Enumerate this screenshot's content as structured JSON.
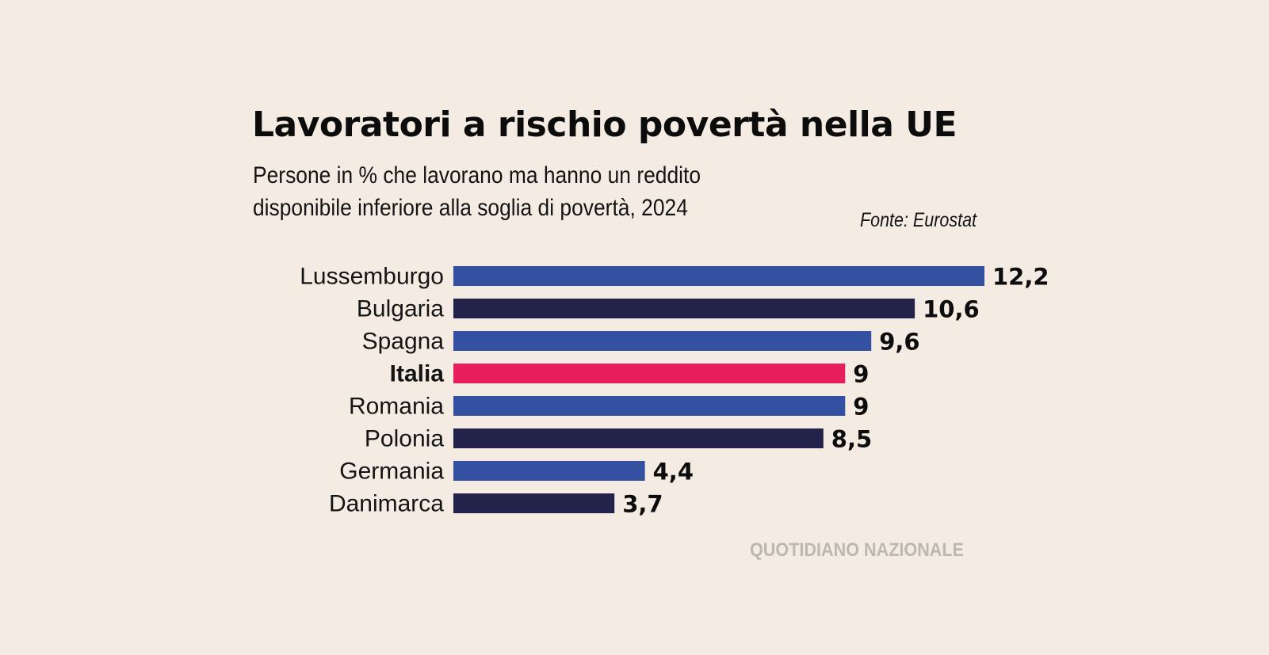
{
  "chart_data": {
    "type": "bar",
    "orientation": "horizontal",
    "title": "Lavoratori a rischio povertà nella UE",
    "subtitle_lines": [
      "Persone in % che lavorano ma hanno un reddito",
      "disponibile inferiore alla soglia di povertà, 2024"
    ],
    "source": "Fonte: Eurostat",
    "categories": [
      "Lussemburgo",
      "Bulgaria",
      "Spagna",
      "Italia",
      "Romania",
      "Polonia",
      "Germania",
      "Danimarca"
    ],
    "values": [
      12.2,
      10.6,
      9.6,
      9,
      9,
      8.5,
      4.4,
      3.7
    ],
    "value_labels": [
      "12,2",
      "10,6",
      "9,6",
      "9",
      "9",
      "8,5",
      "4,4",
      "3,7"
    ],
    "bar_colors": [
      "#3450a0",
      "#22224a",
      "#3450a0",
      "#e71d5c",
      "#3450a0",
      "#22224a",
      "#3450a0",
      "#22224a"
    ],
    "highlight_category": "Italia",
    "xlim": [
      0,
      12.2
    ]
  },
  "footer": {
    "brand": "QUOTIDIANO NAZIONALE"
  }
}
